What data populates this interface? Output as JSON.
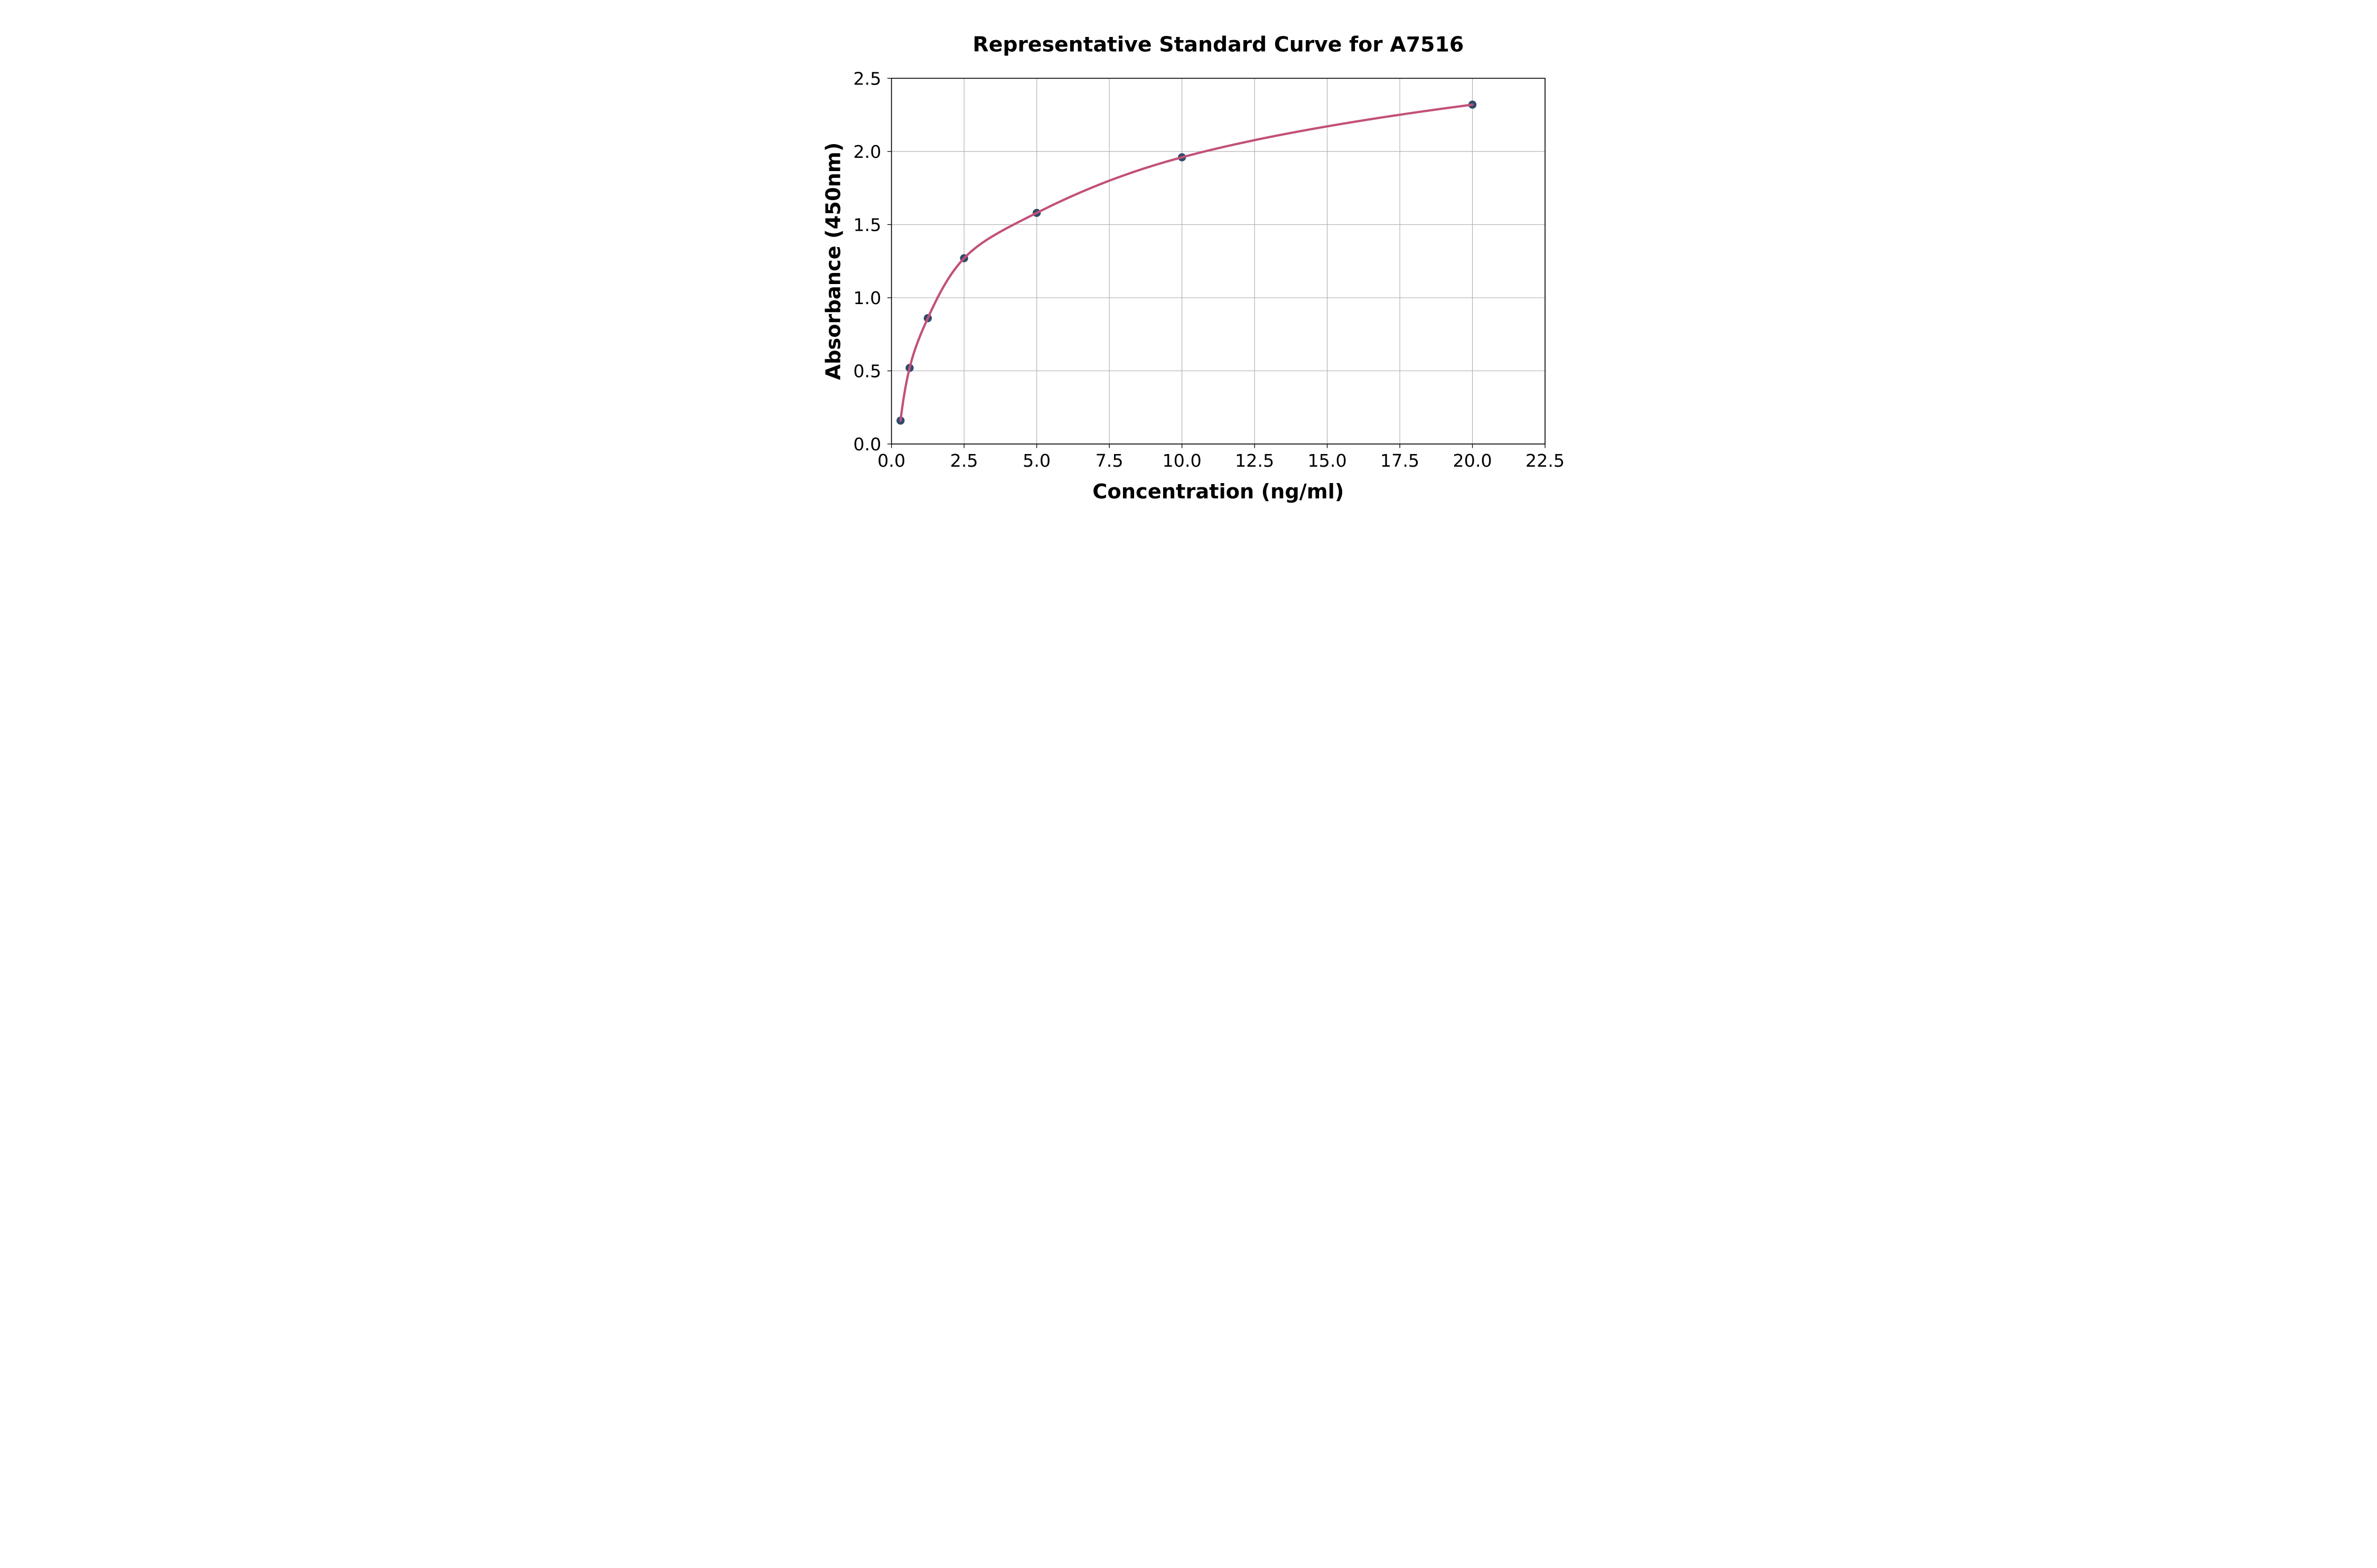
{
  "figure": {
    "background": "#ffffff",
    "title": "Representative Standard Curve for A7516"
  },
  "chart_data": {
    "type": "scatter",
    "title": "Representative Standard Curve for A7516",
    "xlabel": "Concentration (ng/ml)",
    "ylabel": "Absorbance (450nm)",
    "series": [
      {
        "name": "standard-points",
        "x": [
          0.3125,
          0.625,
          1.25,
          2.5,
          5.0,
          10.0,
          20.0
        ],
        "y": [
          0.16,
          0.52,
          0.86,
          1.27,
          1.58,
          1.96,
          2.32
        ]
      }
    ],
    "fit": "smooth saturating standard curve through all points, drawn from first point (0.3125) to last point (20)",
    "xlim": [
      0,
      22.5
    ],
    "ylim": [
      0,
      2.5
    ],
    "x_ticks": [
      0.0,
      2.5,
      5.0,
      7.5,
      10.0,
      12.5,
      15.0,
      17.5,
      20.0,
      22.5
    ],
    "x_tick_labels": [
      "0.0",
      "2.5",
      "5.0",
      "7.5",
      "10.0",
      "12.5",
      "15.0",
      "17.5",
      "20.0",
      "22.5"
    ],
    "y_ticks": [
      0.0,
      0.5,
      1.0,
      1.5,
      2.0,
      2.5
    ],
    "y_tick_labels": [
      "0.0",
      "0.5",
      "1.0",
      "1.5",
      "2.0",
      "2.5"
    ],
    "grid": true,
    "legend": "none",
    "colors": {
      "curve": "#c2517a",
      "marker": "#2f4b6a",
      "grid": "#b0b0b0",
      "axis": "#000000",
      "background": "#ffffff"
    }
  }
}
